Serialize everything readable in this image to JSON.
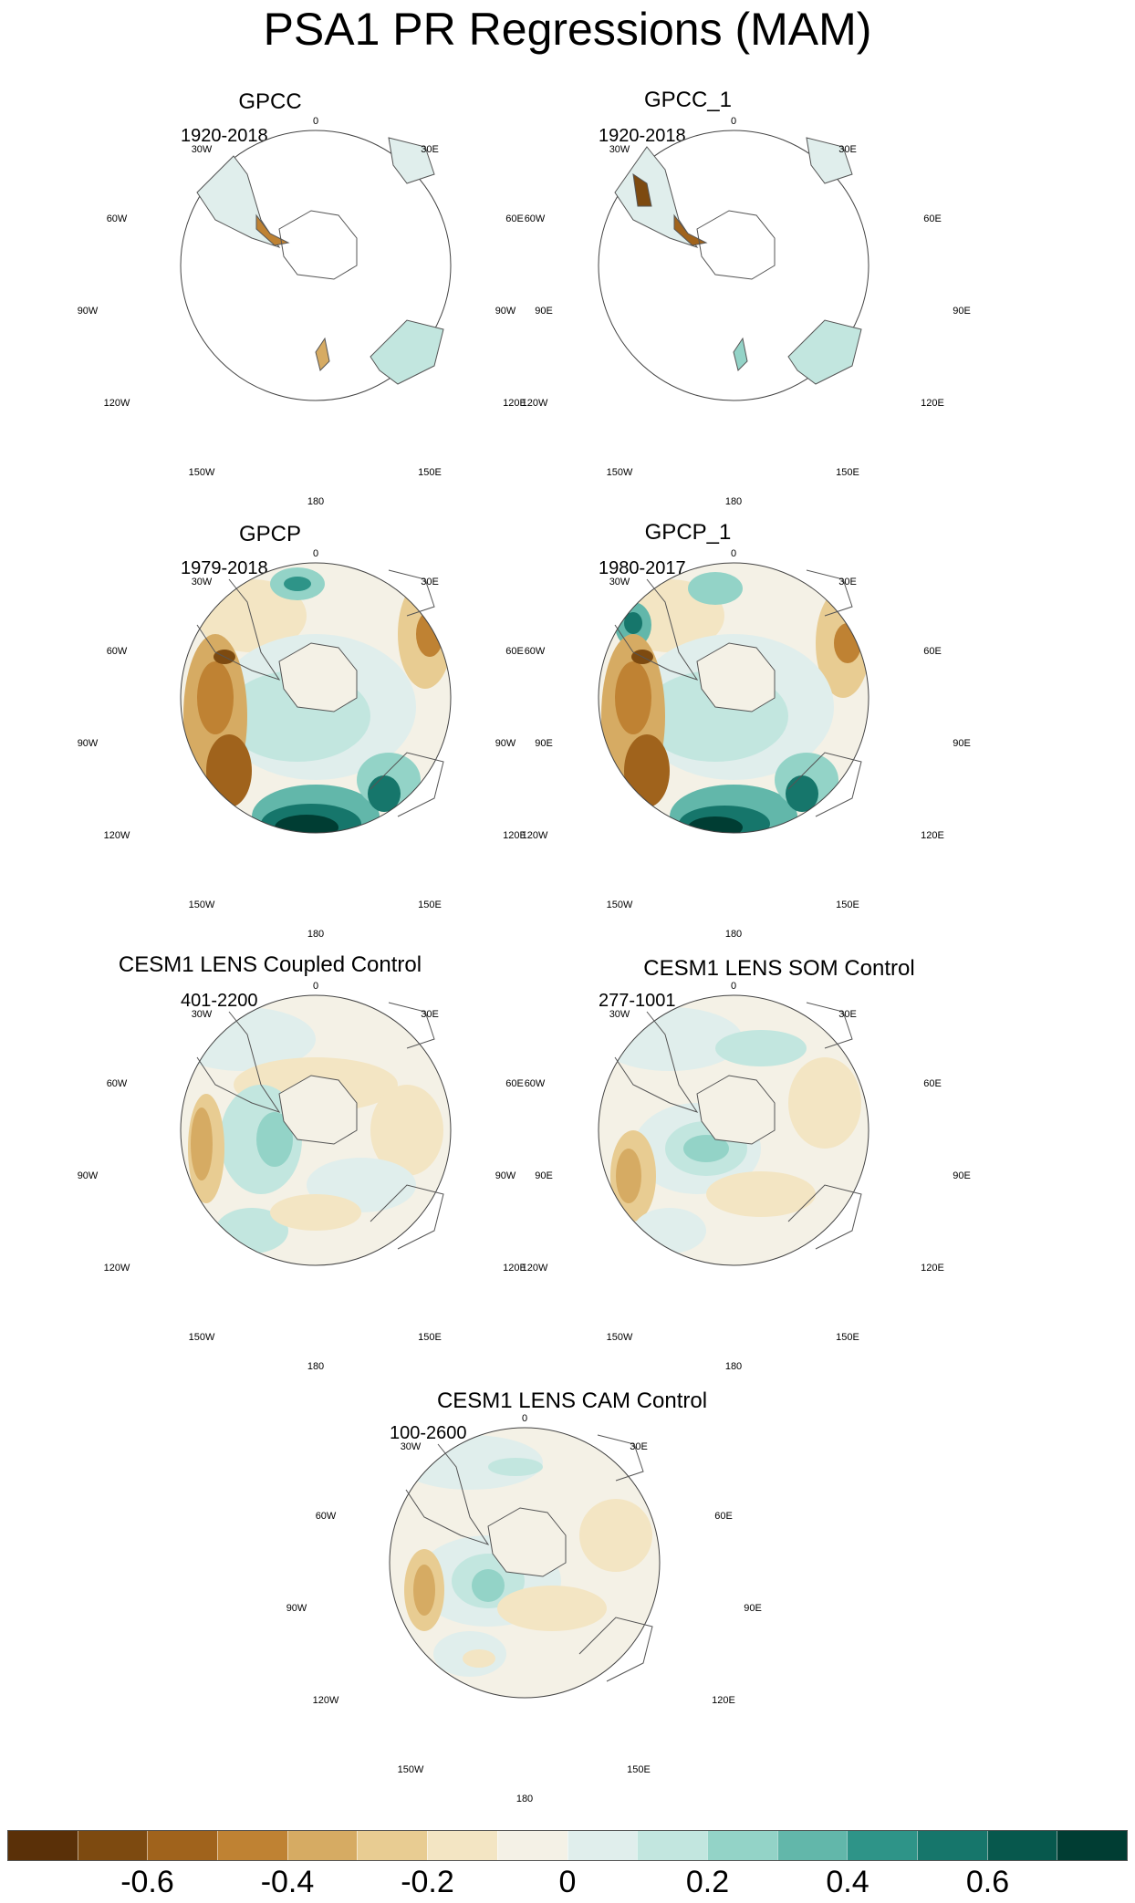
{
  "title": "PSA1 PR Regressions (MAM)",
  "panels": [
    {
      "name": "GPCC",
      "period": "1920-2018"
    },
    {
      "name": "GPCC_1",
      "period": "1920-2018"
    },
    {
      "name": "GPCP",
      "period": "1979-2018"
    },
    {
      "name": "GPCP_1",
      "period": "1980-2017"
    },
    {
      "name": "CESM1 LENS Coupled Control",
      "period": "401-2200"
    },
    {
      "name": "CESM1 LENS SOM Control",
      "period": "277-1001"
    },
    {
      "name": "CESM1 LENS CAM Control",
      "period": "100-2600"
    }
  ],
  "longitude_labels": {
    "deg0": "0",
    "e30": "30E",
    "e60": "60E",
    "e90": "90E",
    "e120": "120E",
    "e150": "150E",
    "deg180": "180",
    "w150": "150W",
    "w120": "120W",
    "w90": "90W",
    "w60": "60W",
    "w30": "30W"
  },
  "colorbar": {
    "colors": [
      "#5a3008",
      "#7d4a10",
      "#a0631c",
      "#bf8233",
      "#d6ab63",
      "#e8cc92",
      "#f3e5c3",
      "#f4f1e6",
      "#e0eeec",
      "#c2e6df",
      "#93d3c7",
      "#62b7aa",
      "#2e9488",
      "#16766b",
      "#07584d",
      "#003d33"
    ],
    "tick_labels": [
      "-0.6",
      "-0.4",
      "-0.2",
      "0",
      "0.2",
      "0.4",
      "0.6"
    ]
  }
}
